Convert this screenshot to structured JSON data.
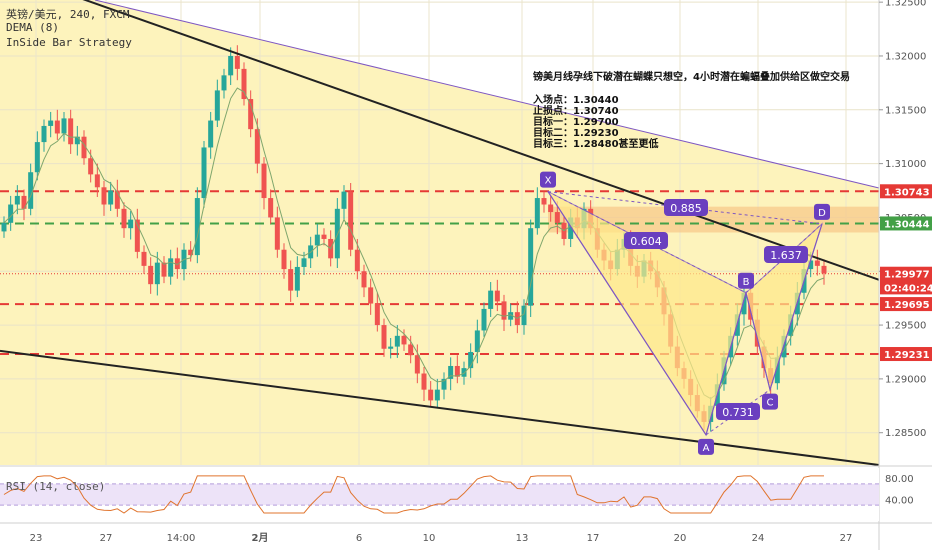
{
  "header": {
    "symbol_line": "英镑/美元, 240, FXCM",
    "indicator_1": "DEMA (8)",
    "indicator_2": "InSide Bar Strategy"
  },
  "annotation": {
    "title": "镑美月线孕线下破潜在蝴蝶只想空，4小时潜在蝙蝠叠加供给区做空交易",
    "lines": [
      "入场点：1.30440",
      "止损点：1.30740",
      "目标一：1.29700",
      "目标二：1.29230",
      "目标三：1.28480甚至更低"
    ]
  },
  "colors": {
    "background_zone": "#fdf2b8",
    "bull": "#26a69a",
    "bear": "#ef5350",
    "red_level": "#e53935",
    "green_level": "#43a047",
    "pattern": "#7e57c2",
    "supply_zone": "#f7c98b"
  },
  "chart_data": {
    "type": "candlestick",
    "ylim": [
      1.282,
      1.3252
    ],
    "y_ticks": [
      "1.32500",
      "1.32000",
      "1.31500",
      "1.31000",
      "1.30500",
      "1.30000",
      "1.29500",
      "1.29000",
      "1.28500"
    ],
    "y_tick_values": [
      1.325,
      1.32,
      1.315,
      1.31,
      1.305,
      1.3,
      1.295,
      1.29,
      1.285
    ],
    "x_ticks": [
      "23",
      "27",
      "14:00",
      "2月",
      "6",
      "10",
      "13",
      "17",
      "20",
      "24",
      "27"
    ],
    "price_labels": [
      {
        "text": "1.30743",
        "value": 1.30743,
        "color": "#e53935"
      },
      {
        "text": "1.30444",
        "value": 1.30444,
        "color": "#43a047"
      },
      {
        "text": "1.29977",
        "value": 1.29977,
        "color": "#e53935"
      },
      {
        "text": "02:40:24",
        "value": 1.2985,
        "color": "#e53935"
      },
      {
        "text": "1.29695",
        "value": 1.29695,
        "color": "#e53935"
      },
      {
        "text": "1.29231",
        "value": 1.29231,
        "color": "#e53935"
      }
    ],
    "levels": [
      {
        "value": 1.30743,
        "color": "#e53935"
      },
      {
        "value": 1.30444,
        "color": "#43a047"
      },
      {
        "value": 1.29695,
        "color": "#e53935"
      },
      {
        "value": 1.29231,
        "color": "#e53935"
      }
    ],
    "current_price": 1.29977,
    "closes": [
      1.3045,
      1.3062,
      1.307,
      1.3058,
      1.3092,
      1.312,
      1.3135,
      1.314,
      1.3128,
      1.3142,
      1.3118,
      1.3125,
      1.3105,
      1.309,
      1.3078,
      1.3062,
      1.3075,
      1.3058,
      1.304,
      1.3048,
      1.3018,
      1.3005,
      1.2988,
      1.3008,
      1.2995,
      1.3012,
      1.3002,
      1.302,
      1.3015,
      1.3068,
      1.3115,
      1.314,
      1.3168,
      1.3182,
      1.32,
      1.3188,
      1.316,
      1.3132,
      1.31,
      1.3068,
      1.305,
      1.302,
      1.3002,
      1.2982,
      1.3004,
      1.3012,
      1.3024,
      1.3034,
      1.303,
      1.3012,
      1.3058,
      1.3074,
      1.302,
      1.3,
      1.2985,
      1.297,
      1.295,
      1.2928,
      1.293,
      1.294,
      1.2932,
      1.2922,
      1.2905,
      1.289,
      1.288,
      1.289,
      1.29,
      1.2912,
      1.2902,
      1.291,
      1.2925,
      1.2945,
      1.2965,
      1.2982,
      1.2972,
      1.2955,
      1.2962,
      1.295,
      1.2968,
      1.304,
      1.3068,
      1.3062,
      1.3055,
      1.3045,
      1.303,
      1.305,
      1.304,
      1.3058,
      1.304,
      1.302,
      1.301,
      1.3002,
      1.302,
      1.303,
      1.3005,
      1.2995,
      1.301,
      1.3,
      1.2985,
      1.296,
      1.293,
      1.291,
      1.29,
      1.2885,
      1.287,
      1.286,
      1.2875,
      1.2895,
      1.292,
      1.294,
      1.296,
      1.298,
      1.2955,
      1.293,
      1.291,
      1.2896,
      1.292,
      1.294,
      1.296,
      1.298,
      1.3002,
      1.301,
      1.3005,
      1.2998
    ],
    "rsi": {
      "label": "RSI (14, close)",
      "ylim": [
        0,
        100
      ],
      "ticks": [
        "80.00",
        "40.00"
      ],
      "tick_values": [
        80,
        40
      ]
    },
    "ratios": [
      {
        "text": "0.885"
      },
      {
        "text": "0.604"
      },
      {
        "text": "1.637"
      },
      {
        "text": "0.731"
      }
    ],
    "points": [
      {
        "label": "X",
        "value": 1.3074
      },
      {
        "label": "A",
        "value": 1.2848
      },
      {
        "label": "B",
        "value": 1.298
      },
      {
        "label": "C",
        "value": 1.289
      },
      {
        "label": "D",
        "value": 1.3044
      }
    ]
  }
}
